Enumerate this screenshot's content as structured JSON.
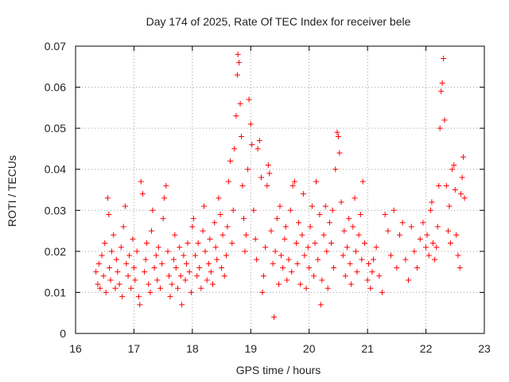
{
  "chart_data": {
    "type": "scatter",
    "title": "Day 174 of 2025, Rate Of TEC Index for receiver bele",
    "xlabel": "GPS time / hours",
    "ylabel": "ROTI / TECUs",
    "xlim": [
      16,
      23
    ],
    "ylim": [
      0,
      0.07
    ],
    "x_ticks": [
      "16",
      "17",
      "18",
      "19",
      "20",
      "21",
      "22",
      "23"
    ],
    "y_ticks": [
      "0",
      "0.01",
      "0.02",
      "0.03",
      "0.04",
      "0.05",
      "0.06",
      "0.07"
    ],
    "grid": true,
    "marker": "plus",
    "marker_color": "#ff0000",
    "series": [
      {
        "values": [
          [
            16.35,
            0.015
          ],
          [
            16.38,
            0.012
          ],
          [
            16.4,
            0.017
          ],
          [
            16.42,
            0.011
          ],
          [
            16.45,
            0.019
          ],
          [
            16.48,
            0.014
          ],
          [
            16.5,
            0.022
          ],
          [
            16.52,
            0.01
          ],
          [
            16.55,
            0.033
          ],
          [
            16.57,
            0.029
          ],
          [
            16.58,
            0.016
          ],
          [
            16.6,
            0.013
          ],
          [
            16.62,
            0.02
          ],
          [
            16.65,
            0.024
          ],
          [
            16.68,
            0.011
          ],
          [
            16.7,
            0.018
          ],
          [
            16.72,
            0.015
          ],
          [
            16.75,
            0.012
          ],
          [
            16.78,
            0.021
          ],
          [
            16.8,
            0.009
          ],
          [
            16.82,
            0.026
          ],
          [
            16.85,
            0.031
          ],
          [
            16.87,
            0.017
          ],
          [
            16.9,
            0.014
          ],
          [
            16.92,
            0.019
          ],
          [
            16.95,
            0.011
          ],
          [
            16.98,
            0.023
          ],
          [
            17.0,
            0.016
          ],
          [
            17.02,
            0.013
          ],
          [
            17.05,
            0.02
          ],
          [
            17.08,
            0.009
          ],
          [
            17.1,
            0.007
          ],
          [
            17.12,
            0.037
          ],
          [
            17.15,
            0.034
          ],
          [
            17.18,
            0.015
          ],
          [
            17.2,
            0.018
          ],
          [
            17.22,
            0.022
          ],
          [
            17.25,
            0.012
          ],
          [
            17.28,
            0.01
          ],
          [
            17.3,
            0.025
          ],
          [
            17.32,
            0.03
          ],
          [
            17.35,
            0.016
          ],
          [
            17.38,
            0.019
          ],
          [
            17.4,
            0.013
          ],
          [
            17.42,
            0.021
          ],
          [
            17.45,
            0.011
          ],
          [
            17.48,
            0.017
          ],
          [
            17.5,
            0.028
          ],
          [
            17.52,
            0.033
          ],
          [
            17.55,
            0.036
          ],
          [
            17.58,
            0.02
          ],
          [
            17.6,
            0.014
          ],
          [
            17.62,
            0.009
          ],
          [
            17.65,
            0.012
          ],
          [
            17.68,
            0.018
          ],
          [
            17.7,
            0.024
          ],
          [
            17.72,
            0.016
          ],
          [
            17.75,
            0.011
          ],
          [
            17.78,
            0.021
          ],
          [
            17.8,
            0.014
          ],
          [
            17.82,
            0.007
          ],
          [
            17.85,
            0.019
          ],
          [
            17.88,
            0.013
          ],
          [
            17.9,
            0.017
          ],
          [
            17.92,
            0.022
          ],
          [
            17.95,
            0.015
          ],
          [
            17.98,
            0.01
          ],
          [
            18.0,
            0.026
          ],
          [
            18.02,
            0.028
          ],
          [
            18.05,
            0.019
          ],
          [
            18.08,
            0.014
          ],
          [
            18.1,
            0.022
          ],
          [
            18.12,
            0.016
          ],
          [
            18.15,
            0.011
          ],
          [
            18.18,
            0.025
          ],
          [
            18.2,
            0.031
          ],
          [
            18.22,
            0.02
          ],
          [
            18.25,
            0.013
          ],
          [
            18.28,
            0.017
          ],
          [
            18.3,
            0.023
          ],
          [
            18.32,
            0.015
          ],
          [
            18.35,
            0.012
          ],
          [
            18.38,
            0.027
          ],
          [
            18.4,
            0.021
          ],
          [
            18.42,
            0.018
          ],
          [
            18.45,
            0.033
          ],
          [
            18.48,
            0.029
          ],
          [
            18.5,
            0.016
          ],
          [
            18.52,
            0.024
          ],
          [
            18.55,
            0.014
          ],
          [
            18.58,
            0.019
          ],
          [
            18.6,
            0.026
          ],
          [
            18.62,
            0.037
          ],
          [
            18.65,
            0.042
          ],
          [
            18.68,
            0.022
          ],
          [
            18.7,
            0.03
          ],
          [
            18.72,
            0.045
          ],
          [
            18.75,
            0.053
          ],
          [
            18.77,
            0.063
          ],
          [
            18.78,
            0.068
          ],
          [
            18.8,
            0.066
          ],
          [
            18.82,
            0.056
          ],
          [
            18.84,
            0.048
          ],
          [
            18.86,
            0.036
          ],
          [
            18.88,
            0.028
          ],
          [
            18.9,
            0.02
          ],
          [
            18.92,
            0.024
          ],
          [
            18.95,
            0.04
          ],
          [
            18.97,
            0.057
          ],
          [
            19.0,
            0.051
          ],
          [
            19.02,
            0.046
          ],
          [
            19.05,
            0.03
          ],
          [
            19.08,
            0.023
          ],
          [
            19.1,
            0.018
          ],
          [
            19.12,
            0.045
          ],
          [
            19.15,
            0.047
          ],
          [
            19.18,
            0.038
          ],
          [
            19.2,
            0.01
          ],
          [
            19.22,
            0.014
          ],
          [
            19.25,
            0.021
          ],
          [
            19.28,
            0.036
          ],
          [
            19.3,
            0.041
          ],
          [
            19.32,
            0.039
          ],
          [
            19.35,
            0.025
          ],
          [
            19.38,
            0.017
          ],
          [
            19.4,
            0.004
          ],
          [
            19.42,
            0.02
          ],
          [
            19.45,
            0.028
          ],
          [
            19.48,
            0.012
          ],
          [
            19.5,
            0.031
          ],
          [
            19.52,
            0.019
          ],
          [
            19.55,
            0.016
          ],
          [
            19.58,
            0.023
          ],
          [
            19.6,
            0.026
          ],
          [
            19.62,
            0.013
          ],
          [
            19.65,
            0.018
          ],
          [
            19.68,
            0.03
          ],
          [
            19.7,
            0.015
          ],
          [
            19.72,
            0.036
          ],
          [
            19.75,
            0.037
          ],
          [
            19.78,
            0.022
          ],
          [
            19.8,
            0.017
          ],
          [
            19.82,
            0.027
          ],
          [
            19.85,
            0.012
          ],
          [
            19.88,
            0.024
          ],
          [
            19.9,
            0.034
          ],
          [
            19.92,
            0.019
          ],
          [
            19.95,
            0.011
          ],
          [
            19.98,
            0.021
          ],
          [
            20.0,
            0.016
          ],
          [
            20.02,
            0.026
          ],
          [
            20.05,
            0.031
          ],
          [
            20.08,
            0.014
          ],
          [
            20.1,
            0.022
          ],
          [
            20.12,
            0.037
          ],
          [
            20.15,
            0.018
          ],
          [
            20.18,
            0.029
          ],
          [
            20.2,
            0.007
          ],
          [
            20.22,
            0.013
          ],
          [
            20.25,
            0.024
          ],
          [
            20.28,
            0.031
          ],
          [
            20.3,
            0.02
          ],
          [
            20.32,
            0.011
          ],
          [
            20.35,
            0.027
          ],
          [
            20.38,
            0.022
          ],
          [
            20.4,
            0.03
          ],
          [
            20.42,
            0.016
          ],
          [
            20.45,
            0.04
          ],
          [
            20.48,
            0.049
          ],
          [
            20.5,
            0.048
          ],
          [
            20.52,
            0.044
          ],
          [
            20.55,
            0.032
          ],
          [
            20.58,
            0.019
          ],
          [
            20.6,
            0.025
          ],
          [
            20.62,
            0.014
          ],
          [
            20.65,
            0.021
          ],
          [
            20.68,
            0.028
          ],
          [
            20.7,
            0.017
          ],
          [
            20.72,
            0.012
          ],
          [
            20.75,
            0.026
          ],
          [
            20.78,
            0.033
          ],
          [
            20.8,
            0.02
          ],
          [
            20.82,
            0.015
          ],
          [
            20.85,
            0.024
          ],
          [
            20.88,
            0.029
          ],
          [
            20.9,
            0.018
          ],
          [
            20.92,
            0.037
          ],
          [
            20.95,
            0.022
          ],
          [
            21.0,
            0.013
          ],
          [
            21.02,
            0.017
          ],
          [
            21.05,
            0.011
          ],
          [
            21.08,
            0.015
          ],
          [
            21.1,
            0.018
          ],
          [
            21.15,
            0.021
          ],
          [
            21.2,
            0.014
          ],
          [
            21.25,
            0.01
          ],
          [
            21.3,
            0.029
          ],
          [
            21.35,
            0.025
          ],
          [
            21.4,
            0.019
          ],
          [
            21.45,
            0.03
          ],
          [
            21.5,
            0.016
          ],
          [
            21.55,
            0.024
          ],
          [
            21.6,
            0.027
          ],
          [
            21.65,
            0.018
          ],
          [
            21.7,
            0.013
          ],
          [
            21.75,
            0.026
          ],
          [
            21.8,
            0.02
          ],
          [
            21.85,
            0.016
          ],
          [
            21.9,
            0.023
          ],
          [
            21.95,
            0.027
          ],
          [
            22.0,
            0.021
          ],
          [
            22.02,
            0.024
          ],
          [
            22.05,
            0.019
          ],
          [
            22.08,
            0.03
          ],
          [
            22.1,
            0.032
          ],
          [
            22.12,
            0.022
          ],
          [
            22.15,
            0.018
          ],
          [
            22.18,
            0.021
          ],
          [
            22.2,
            0.026
          ],
          [
            22.22,
            0.036
          ],
          [
            22.24,
            0.05
          ],
          [
            22.26,
            0.059
          ],
          [
            22.28,
            0.061
          ],
          [
            22.3,
            0.067
          ],
          [
            22.32,
            0.052
          ],
          [
            22.35,
            0.036
          ],
          [
            22.38,
            0.025
          ],
          [
            22.4,
            0.031
          ],
          [
            22.42,
            0.022
          ],
          [
            22.45,
            0.04
          ],
          [
            22.48,
            0.041
          ],
          [
            22.5,
            0.035
          ],
          [
            22.52,
            0.024
          ],
          [
            22.55,
            0.019
          ],
          [
            22.58,
            0.016
          ],
          [
            22.6,
            0.034
          ],
          [
            22.62,
            0.038
          ],
          [
            22.64,
            0.043
          ],
          [
            22.66,
            0.033
          ]
        ]
      }
    ]
  }
}
